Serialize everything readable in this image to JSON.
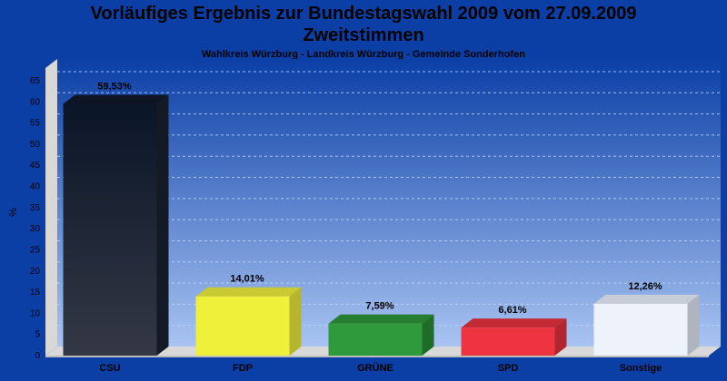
{
  "header": {
    "title_line1": "Vorläufiges Ergebnis zur Bundestagswahl 2009 vom 27.09.2009",
    "title_line2": "Zweitstimmen",
    "subtitle": "Wahlkreis Würzburg - Landkreis Würzburg - Gemeinde Sonderhofen"
  },
  "chart_data": {
    "type": "bar",
    "title": "Vorläufiges Ergebnis zur Bundestagswahl 2009 vom 27.09.2009 Zweitstimmen",
    "subtitle": "Wahlkreis Würzburg - Landkreis Würzburg - Gemeinde Sonderhofen",
    "ylabel": "%",
    "xlabel": "",
    "ylim": [
      0,
      68
    ],
    "yticks": [
      0,
      5,
      10,
      15,
      20,
      25,
      30,
      35,
      40,
      45,
      50,
      55,
      60,
      65
    ],
    "grid": true,
    "categories": [
      "CSU",
      "FDP",
      "GRÜNE",
      "SPD",
      "Sonstige"
    ],
    "values": [
      59.53,
      14.01,
      7.59,
      6.61,
      12.26
    ],
    "value_labels": [
      "59,53%",
      "14,01%",
      "7,59%",
      "6,61%",
      "12,26%"
    ],
    "colors": [
      {
        "front": "#1e2330",
        "top": "#0e1424",
        "side": "#141926"
      },
      {
        "front": "#eef03a",
        "top": "#c8c933",
        "side": "#b5b52e"
      },
      {
        "front": "#2e9a3b",
        "top": "#267f31",
        "side": "#1f6b28"
      },
      {
        "front": "#ee3440",
        "top": "#c42a33",
        "side": "#b0262e"
      },
      {
        "front": "#eef2fb",
        "top": "#c8ccd6",
        "side": "#b0b4bf"
      }
    ]
  }
}
